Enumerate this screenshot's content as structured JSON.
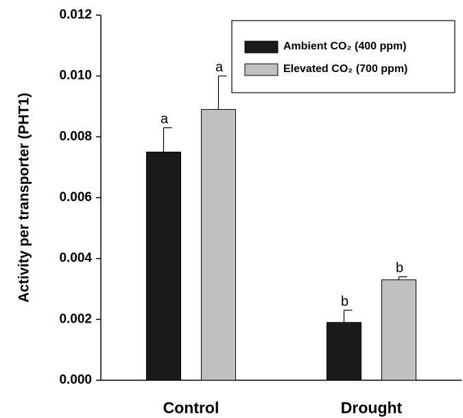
{
  "chart_data": {
    "type": "bar",
    "y_label": "Activity per transporter (PHT1)",
    "categories": [
      "Control",
      "Drought"
    ],
    "series": [
      {
        "name": "Ambient CO₂ (400 ppm)",
        "color": "#1a1a1a",
        "values": [
          0.0075,
          0.0019
        ],
        "errors": [
          0.0008,
          0.0004
        ],
        "letters": [
          "a",
          "b"
        ]
      },
      {
        "name": "Elevated CO₂ (700 ppm)",
        "color": "#c0c0c0",
        "values": [
          0.0089,
          0.0033
        ],
        "errors": [
          0.0011,
          0.0001
        ],
        "letters": [
          "a",
          "b"
        ]
      }
    ],
    "ylim": [
      0,
      0.012
    ],
    "yticks": [
      {
        "value": 0,
        "label": "0.000"
      },
      {
        "value": 0.002,
        "label": "0.002"
      },
      {
        "value": 0.004,
        "label": "0.004"
      },
      {
        "value": 0.006,
        "label": "0.006"
      },
      {
        "value": 0.008,
        "label": "0.008"
      },
      {
        "value": 0.01,
        "label": "0.010"
      },
      {
        "value": 0.012,
        "label": "0.012"
      }
    ],
    "legend": "upper right"
  }
}
